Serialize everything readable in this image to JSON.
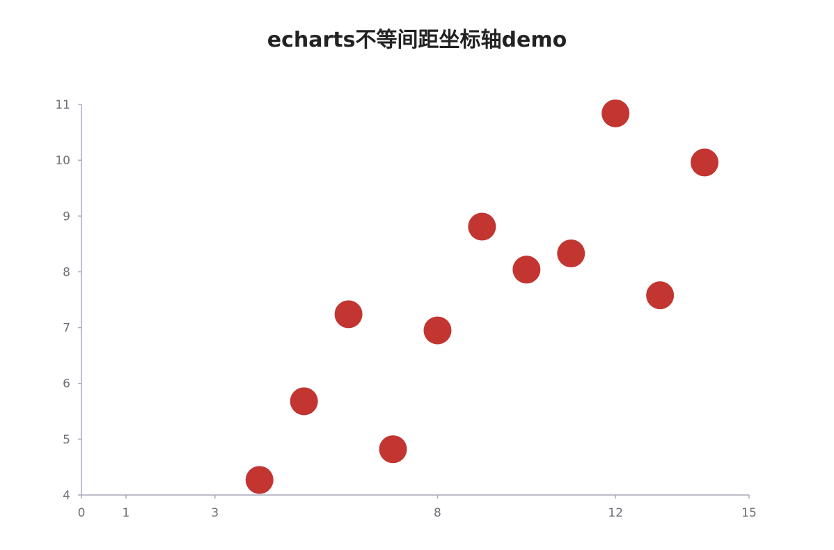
{
  "colors": {
    "point": "#c23531",
    "axis": "#a9a9bd",
    "tick_text": "#6e7079",
    "title": "#222222"
  },
  "chart_data": {
    "type": "scatter",
    "title": "echarts不等间距坐标轴demo",
    "xlabel": "",
    "ylabel": "",
    "xlim": [
      0,
      15
    ],
    "ylim": [
      4,
      11
    ],
    "x_ticks": [
      0,
      1,
      3,
      8,
      12,
      15
    ],
    "y_ticks": [
      4,
      5,
      6,
      7,
      8,
      9,
      10,
      11
    ],
    "grid": false,
    "legend": "none",
    "series": [
      {
        "points": [
          [
            4,
            4.27
          ],
          [
            5,
            5.68
          ],
          [
            6,
            7.24
          ],
          [
            7,
            4.82
          ],
          [
            8,
            6.95
          ],
          [
            9,
            8.81
          ],
          [
            10,
            8.04
          ],
          [
            11,
            8.33
          ],
          [
            12,
            10.84
          ],
          [
            13,
            7.58
          ],
          [
            14,
            9.96
          ]
        ]
      }
    ]
  }
}
